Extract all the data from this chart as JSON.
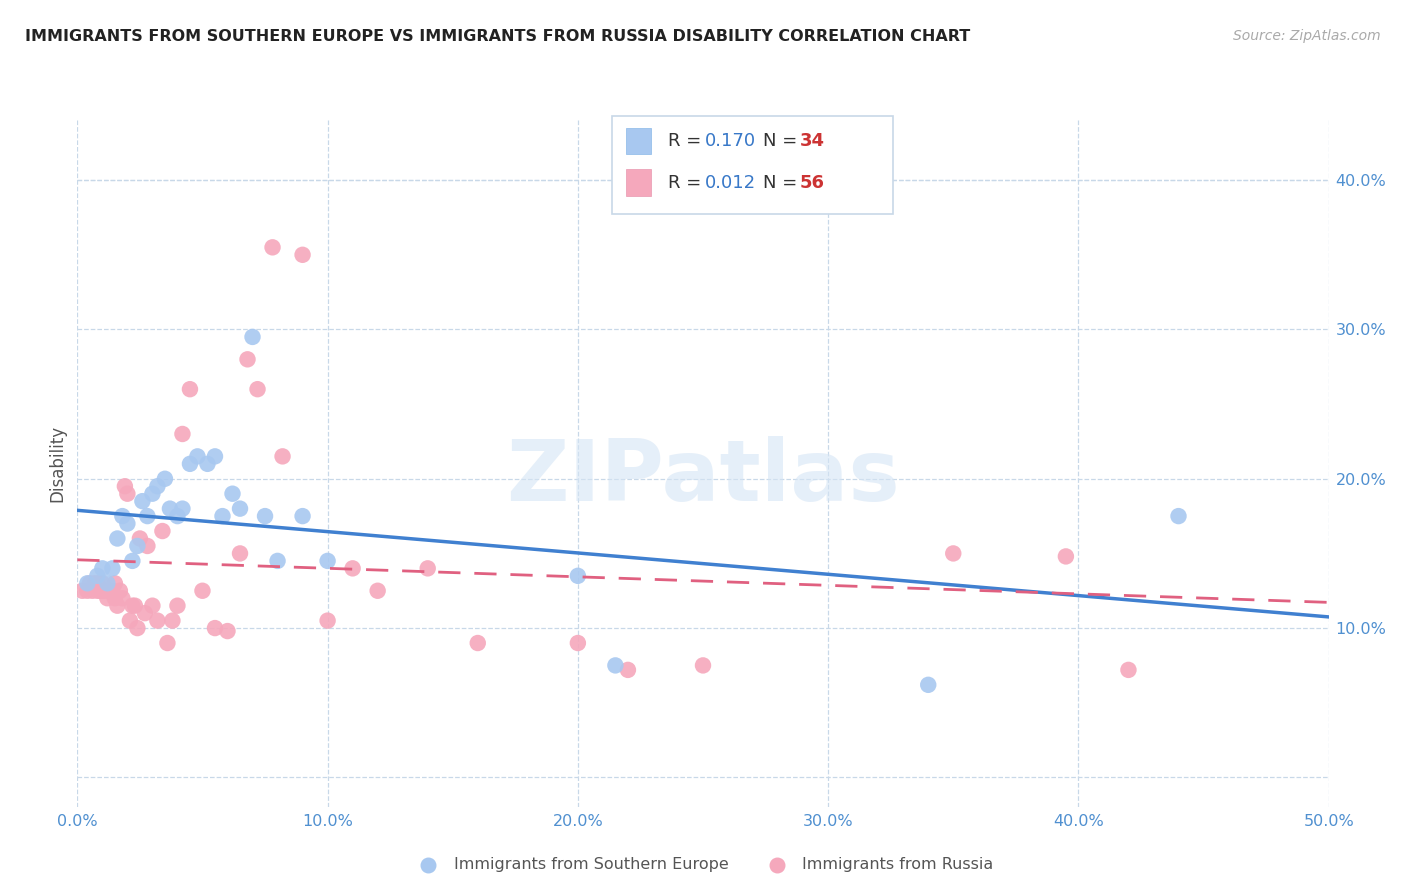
{
  "title": "IMMIGRANTS FROM SOUTHERN EUROPE VS IMMIGRANTS FROM RUSSIA DISABILITY CORRELATION CHART",
  "source": "Source: ZipAtlas.com",
  "ylabel": "Disability",
  "xlim": [
    0.0,
    0.5
  ],
  "ylim": [
    -0.02,
    0.44
  ],
  "plot_ylim": [
    -0.02,
    0.44
  ],
  "xtick_vals": [
    0.0,
    0.1,
    0.2,
    0.3,
    0.4,
    0.5
  ],
  "ytick_vals": [
    0.1,
    0.2,
    0.3,
    0.4
  ],
  "xtick_labels": [
    "0.0%",
    "10.0%",
    "20.0%",
    "30.0%",
    "40.0%",
    "50.0%"
  ],
  "ytick_labels": [
    "10.0%",
    "20.0%",
    "30.0%",
    "40.0%"
  ],
  "blue_R": "0.170",
  "blue_N": "34",
  "pink_R": "0.012",
  "pink_N": "56",
  "blue_color": "#A8C8F0",
  "pink_color": "#F5A8BC",
  "blue_line_color": "#4080D0",
  "pink_line_color": "#E06080",
  "watermark": "ZIPatlas",
  "legend_label_blue": "Immigrants from Southern Europe",
  "legend_label_pink": "Immigrants from Russia",
  "blue_x": [
    0.004,
    0.008,
    0.01,
    0.012,
    0.014,
    0.016,
    0.018,
    0.02,
    0.022,
    0.024,
    0.026,
    0.028,
    0.03,
    0.032,
    0.035,
    0.037,
    0.04,
    0.042,
    0.045,
    0.048,
    0.052,
    0.055,
    0.058,
    0.062,
    0.065,
    0.07,
    0.075,
    0.08,
    0.09,
    0.1,
    0.2,
    0.215,
    0.34,
    0.44
  ],
  "blue_y": [
    0.13,
    0.135,
    0.14,
    0.13,
    0.14,
    0.16,
    0.175,
    0.17,
    0.145,
    0.155,
    0.185,
    0.175,
    0.19,
    0.195,
    0.2,
    0.18,
    0.175,
    0.18,
    0.21,
    0.215,
    0.21,
    0.215,
    0.175,
    0.19,
    0.18,
    0.295,
    0.175,
    0.145,
    0.175,
    0.145,
    0.135,
    0.075,
    0.062,
    0.175
  ],
  "pink_x": [
    0.002,
    0.004,
    0.005,
    0.006,
    0.007,
    0.008,
    0.008,
    0.009,
    0.01,
    0.01,
    0.011,
    0.012,
    0.013,
    0.014,
    0.015,
    0.015,
    0.016,
    0.017,
    0.018,
    0.019,
    0.02,
    0.021,
    0.022,
    0.023,
    0.024,
    0.025,
    0.027,
    0.028,
    0.03,
    0.032,
    0.034,
    0.036,
    0.038,
    0.04,
    0.042,
    0.045,
    0.05,
    0.055,
    0.06,
    0.065,
    0.068,
    0.072,
    0.078,
    0.082,
    0.09,
    0.1,
    0.11,
    0.12,
    0.14,
    0.16,
    0.2,
    0.22,
    0.25,
    0.35,
    0.395,
    0.42
  ],
  "pink_y": [
    0.125,
    0.125,
    0.13,
    0.125,
    0.13,
    0.13,
    0.125,
    0.125,
    0.13,
    0.125,
    0.125,
    0.12,
    0.125,
    0.125,
    0.12,
    0.13,
    0.115,
    0.125,
    0.12,
    0.195,
    0.19,
    0.105,
    0.115,
    0.115,
    0.1,
    0.16,
    0.11,
    0.155,
    0.115,
    0.105,
    0.165,
    0.09,
    0.105,
    0.115,
    0.23,
    0.26,
    0.125,
    0.1,
    0.098,
    0.15,
    0.28,
    0.26,
    0.355,
    0.215,
    0.35,
    0.105,
    0.14,
    0.125,
    0.14,
    0.09,
    0.09,
    0.072,
    0.075,
    0.15,
    0.148,
    0.072
  ]
}
